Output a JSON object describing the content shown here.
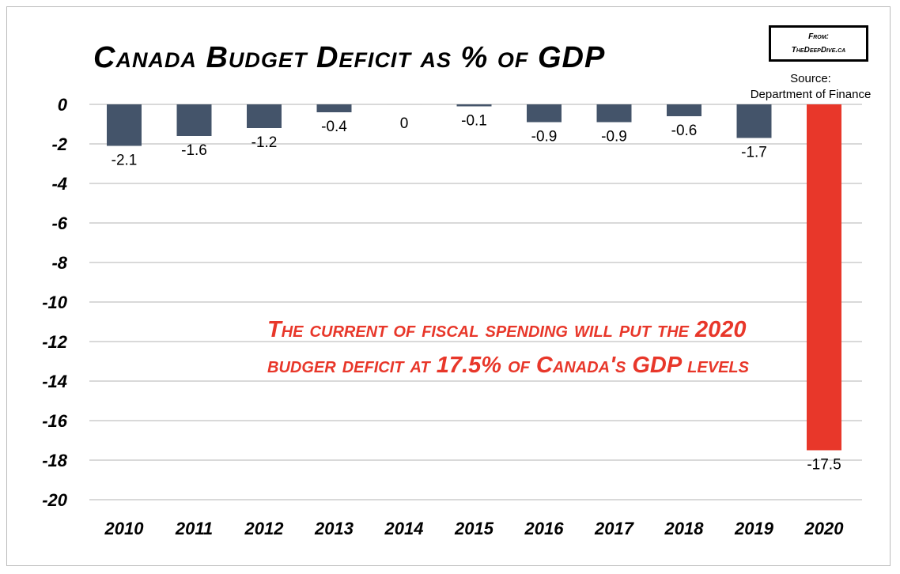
{
  "chart_data": {
    "type": "bar",
    "title": "Canada Budget Deficit as % of GDP",
    "categories": [
      "2010",
      "2011",
      "2012",
      "2013",
      "2014",
      "2015",
      "2016",
      "2017",
      "2018",
      "2019",
      "2020"
    ],
    "values": [
      -2.1,
      -1.6,
      -1.2,
      -0.4,
      0,
      -0.1,
      -0.9,
      -0.9,
      -0.6,
      -1.7,
      -17.5
    ],
    "data_labels": [
      "-2.1",
      "-1.6",
      "-1.2",
      "-0.4",
      "0",
      "-0.1",
      "-0.9",
      "-0.9",
      "-0.6",
      "-1.7",
      "-17.5"
    ],
    "ylim": [
      -20,
      0
    ],
    "yticks": [
      0,
      -2,
      -4,
      -6,
      -8,
      -10,
      -12,
      -14,
      -16,
      -18,
      -20
    ],
    "grid": true,
    "colors": {
      "default": "#44546a",
      "highlight": "#e8372a"
    },
    "highlight_category": "2020",
    "annotation": "The current of fiscal spending will put the 2020 budger deficit at 17.5% of Canada's GDP levels"
  },
  "badge": {
    "line1": "From:",
    "line2": "TheDeepDive.ca"
  },
  "source": {
    "line1": "Source:",
    "line2": "Department of Finance"
  }
}
